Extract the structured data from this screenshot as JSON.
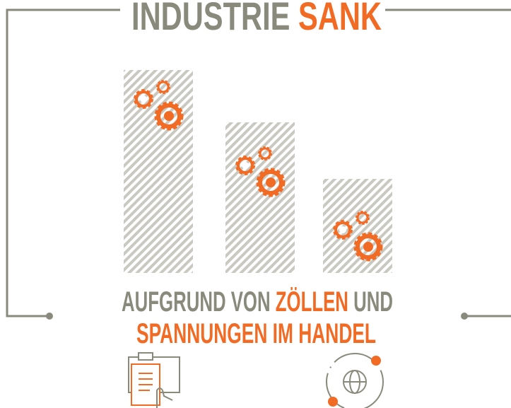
{
  "title": {
    "word1": "INDUSTRIE",
    "word2": "SANK"
  },
  "subtitle": {
    "line1": {
      "part1": "AUFGRUND VON",
      "part2": "ZÖLLEN",
      "part3": "UND"
    },
    "line2": "SPANNUNGEN IM HANDEL"
  }
}
